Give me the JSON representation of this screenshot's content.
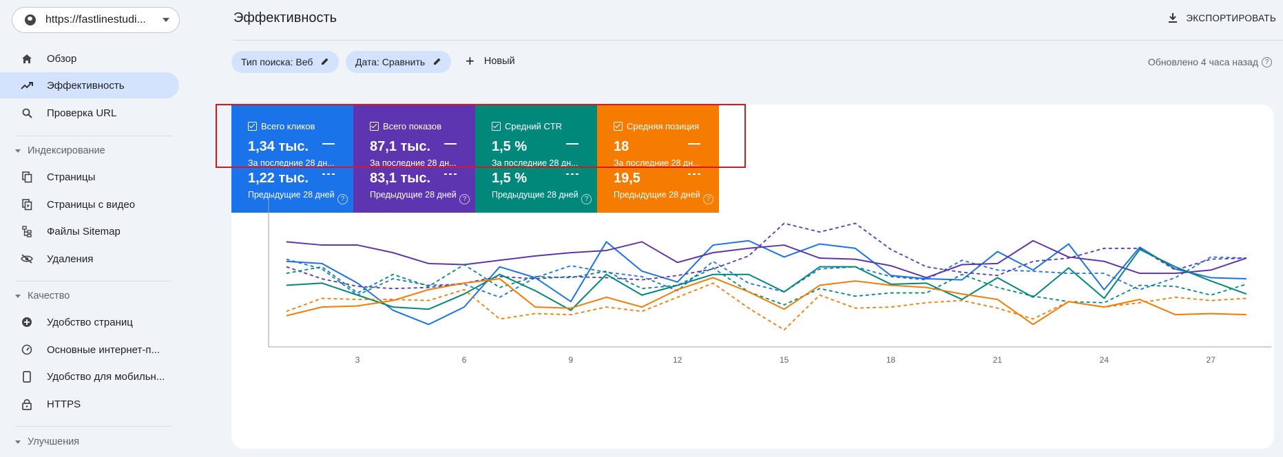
{
  "property": {
    "url": "https://fastlinestudi..."
  },
  "nav": {
    "overview": "Обзор",
    "performance": "Эффективность",
    "url_inspection": "Проверка URL",
    "section_indexing": "Индексирование",
    "pages": "Страницы",
    "video_pages": "Страницы с видео",
    "sitemaps": "Файлы Sitemap",
    "removals": "Удаления",
    "section_quality": "Качество",
    "page_experience": "Удобство страниц",
    "core_web_vitals": "Основные интернет-п...",
    "mobile_usability": "Удобство для мобильн...",
    "https": "HTTPS",
    "section_enhancements": "Улучшения"
  },
  "header": {
    "title": "Эффективность",
    "export": "ЭКСПОРТИРОВАТЬ"
  },
  "filters": {
    "search_type": "Тип поиска: Веб",
    "date": "Дата: Сравнить",
    "new": "Новый",
    "updated": "Обновлено 4 часа назад"
  },
  "metrics": [
    {
      "label": "Всего кликов",
      "current": "1,34 тыс.",
      "current_period": "За последние 28 дн...",
      "previous": "1,22 тыс.",
      "previous_period": "Предыдущие 28 дней",
      "color": "#1a73e8"
    },
    {
      "label": "Всего показов",
      "current": "87,1 тыс.",
      "current_period": "За последние 28 дн...",
      "previous": "83,1 тыс.",
      "previous_period": "Предыдущие 28 дней",
      "color": "#5e35b1"
    },
    {
      "label": "Средний CTR",
      "current": "1,5 %",
      "current_period": "За последние 28 дн...",
      "previous": "1,5 %",
      "previous_period": "Предыдущие 28 дней",
      "color": "#00897b"
    },
    {
      "label": "Средняя позиция",
      "current": "18",
      "current_period": "За последние 28 дн...",
      "previous": "19,5",
      "previous_period": "Предыдущие 28 дней",
      "color": "#f57c00"
    }
  ],
  "chart_data": {
    "type": "line",
    "x": [
      1,
      2,
      3,
      4,
      5,
      6,
      7,
      8,
      9,
      10,
      11,
      12,
      13,
      14,
      15,
      16,
      17,
      18,
      19,
      20,
      21,
      22,
      23,
      24,
      25,
      26,
      27,
      28
    ],
    "xticks": [
      3,
      6,
      9,
      12,
      15,
      18,
      21,
      24,
      27
    ],
    "series": [
      {
        "color": "#1a73e8",
        "style": "solid",
        "values": [
          0.78,
          0.76,
          0.58,
          0.33,
          0.2,
          0.36,
          0.73,
          0.63,
          0.41,
          0.96,
          0.69,
          0.59,
          0.93,
          0.97,
          0.82,
          0.94,
          0.9,
          0.65,
          0.62,
          0.61,
          0.87,
          0.7,
          0.94,
          0.52,
          0.91,
          0.71,
          0.63,
          0.62
        ]
      },
      {
        "color": "#1a73e8",
        "style": "dash",
        "values": [
          0.8,
          0.71,
          0.47,
          0.62,
          0.56,
          0.57,
          0.45,
          0.63,
          0.74,
          0.68,
          0.64,
          0.51,
          0.78,
          0.58,
          0.5,
          0.71,
          0.73,
          0.64,
          0.61,
          0.79,
          0.7,
          0.69,
          0.67,
          0.67,
          0.52,
          0.63,
          0.82,
          0.81
        ]
      },
      {
        "color": "#5e35b1",
        "style": "solid",
        "values": [
          0.96,
          0.93,
          0.93,
          0.86,
          0.76,
          0.75,
          0.79,
          0.83,
          0.86,
          0.88,
          0.96,
          0.77,
          0.86,
          0.9,
          0.93,
          0.81,
          0.8,
          0.74,
          0.63,
          0.75,
          0.76,
          0.97,
          0.82,
          0.78,
          0.67,
          0.67,
          0.7,
          0.81
        ]
      },
      {
        "color": "#5e35b1",
        "style": "dash",
        "values": [
          0.73,
          0.62,
          0.55,
          0.53,
          0.54,
          0.58,
          0.64,
          0.62,
          0.64,
          0.63,
          0.61,
          0.65,
          0.71,
          0.83,
          1.13,
          1.05,
          1.13,
          0.89,
          0.73,
          0.68,
          0.65,
          0.78,
          0.81,
          0.9,
          0.9,
          0.7,
          0.8,
          0.81
        ]
      },
      {
        "color": "#00897b",
        "style": "solid",
        "values": [
          0.56,
          0.58,
          0.47,
          0.36,
          0.34,
          0.48,
          0.66,
          0.51,
          0.33,
          0.66,
          0.47,
          0.56,
          0.66,
          0.66,
          0.5,
          0.73,
          0.73,
          0.57,
          0.58,
          0.43,
          0.63,
          0.45,
          0.72,
          0.44,
          0.89,
          0.73,
          0.6,
          0.48
        ]
      },
      {
        "color": "#00897b",
        "style": "dash",
        "values": [
          0.67,
          0.73,
          0.49,
          0.66,
          0.55,
          0.75,
          0.54,
          0.64,
          0.63,
          0.69,
          0.53,
          0.56,
          0.72,
          0.5,
          0.38,
          0.53,
          0.46,
          0.49,
          0.49,
          0.66,
          0.54,
          0.46,
          0.41,
          0.4,
          0.56,
          0.55,
          0.47,
          0.57
        ]
      },
      {
        "color": "#f57c00",
        "style": "solid",
        "values": [
          0.28,
          0.36,
          0.37,
          0.42,
          0.52,
          0.58,
          0.62,
          0.36,
          0.35,
          0.45,
          0.36,
          0.52,
          0.63,
          0.5,
          0.34,
          0.56,
          0.6,
          0.56,
          0.54,
          0.48,
          0.43,
          0.2,
          0.41,
          0.36,
          0.43,
          0.29,
          0.3,
          0.29
        ]
      },
      {
        "color": "#f57c00",
        "style": "dash",
        "values": [
          0.32,
          0.44,
          0.43,
          0.43,
          0.42,
          0.52,
          0.25,
          0.3,
          0.29,
          0.36,
          0.32,
          0.45,
          0.58,
          0.35,
          0.15,
          0.47,
          0.35,
          0.36,
          0.4,
          0.42,
          0.35,
          0.25,
          0.41,
          0.36,
          0.4,
          0.45,
          0.42,
          0.44
        ]
      }
    ]
  }
}
